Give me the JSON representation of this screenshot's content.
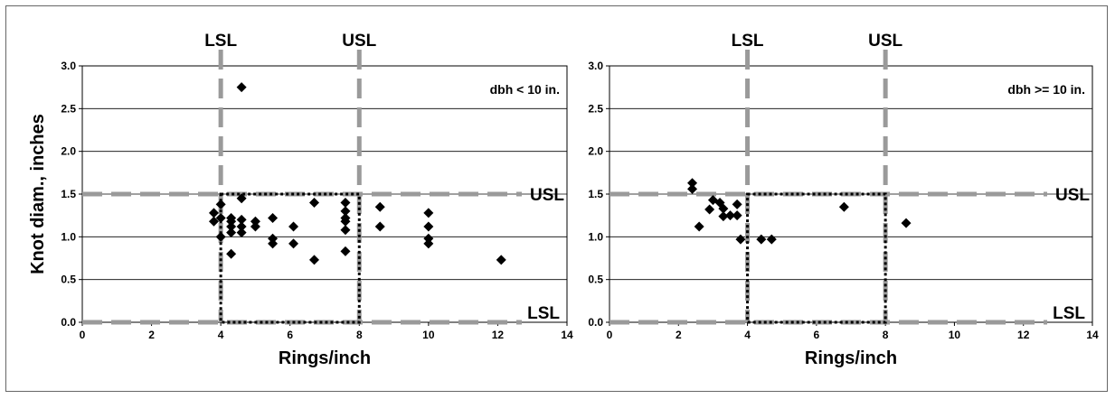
{
  "chart_data": [
    {
      "type": "scatter",
      "annotation": "dbh < 10 in.",
      "xlabel": "Rings/inch",
      "ylabel": "Knot diam., inches",
      "xlim": [
        0,
        14
      ],
      "ylim": [
        0,
        3.0
      ],
      "xticks": [
        "0",
        "2",
        "4",
        "6",
        "8",
        "10",
        "12",
        "14"
      ],
      "yticks": [
        "0.0",
        "0.5",
        "1.0",
        "1.5",
        "2.0",
        "2.5",
        "3.0"
      ],
      "grid": "horizontal",
      "spec_limits": {
        "x_lsl": 4,
        "x_usl": 8,
        "y_lsl": 0,
        "y_usl": 1.5,
        "lsl_label": "LSL",
        "usl_label": "USL"
      },
      "spec_box": {
        "x": [
          4,
          8
        ],
        "y": [
          0,
          1.5
        ]
      },
      "points": [
        [
          3.8,
          1.28
        ],
        [
          3.8,
          1.18
        ],
        [
          4.0,
          1.38
        ],
        [
          4.0,
          1.0
        ],
        [
          4.0,
          1.22
        ],
        [
          4.3,
          1.22
        ],
        [
          4.3,
          1.12
        ],
        [
          4.3,
          1.05
        ],
        [
          4.3,
          0.8
        ],
        [
          4.3,
          1.18
        ],
        [
          4.6,
          1.45
        ],
        [
          4.6,
          1.2
        ],
        [
          4.6,
          1.12
        ],
        [
          4.6,
          1.05
        ],
        [
          4.6,
          2.75
        ],
        [
          5.0,
          1.18
        ],
        [
          5.0,
          1.12
        ],
        [
          5.5,
          1.22
        ],
        [
          5.5,
          0.98
        ],
        [
          5.5,
          0.92
        ],
        [
          6.1,
          1.12
        ],
        [
          6.1,
          0.92
        ],
        [
          6.7,
          1.4
        ],
        [
          6.7,
          0.73
        ],
        [
          7.6,
          1.4
        ],
        [
          7.6,
          1.3
        ],
        [
          7.6,
          1.22
        ],
        [
          7.6,
          1.18
        ],
        [
          7.6,
          1.08
        ],
        [
          7.6,
          0.83
        ],
        [
          8.6,
          1.35
        ],
        [
          8.6,
          1.12
        ],
        [
          10.0,
          1.28
        ],
        [
          10.0,
          1.12
        ],
        [
          10.0,
          0.98
        ],
        [
          10.0,
          0.92
        ],
        [
          12.1,
          0.73
        ]
      ]
    },
    {
      "type": "scatter",
      "annotation": "dbh >= 10 in.",
      "xlabel": "Rings/inch",
      "ylabel": "",
      "xlim": [
        0,
        14
      ],
      "ylim": [
        0,
        3.0
      ],
      "xticks": [
        "0",
        "2",
        "4",
        "6",
        "8",
        "10",
        "12",
        "14"
      ],
      "yticks": [
        "0.0",
        "0.5",
        "1.0",
        "1.5",
        "2.0",
        "2.5",
        "3.0"
      ],
      "grid": "horizontal",
      "spec_limits": {
        "x_lsl": 4,
        "x_usl": 8,
        "y_lsl": 0,
        "y_usl": 1.5,
        "lsl_label": "LSL",
        "usl_label": "USL"
      },
      "spec_box": {
        "x": [
          4,
          8
        ],
        "y": [
          0,
          1.5
        ]
      },
      "points": [
        [
          2.4,
          1.63
        ],
        [
          2.4,
          1.56
        ],
        [
          2.6,
          1.12
        ],
        [
          2.9,
          1.32
        ],
        [
          3.0,
          1.43
        ],
        [
          3.2,
          1.4
        ],
        [
          3.3,
          1.24
        ],
        [
          3.3,
          1.33
        ],
        [
          3.5,
          1.25
        ],
        [
          3.7,
          1.25
        ],
        [
          3.7,
          1.38
        ],
        [
          3.8,
          0.97
        ],
        [
          4.4,
          0.97
        ],
        [
          4.7,
          0.97
        ],
        [
          6.8,
          1.35
        ],
        [
          8.6,
          1.16
        ]
      ]
    }
  ]
}
